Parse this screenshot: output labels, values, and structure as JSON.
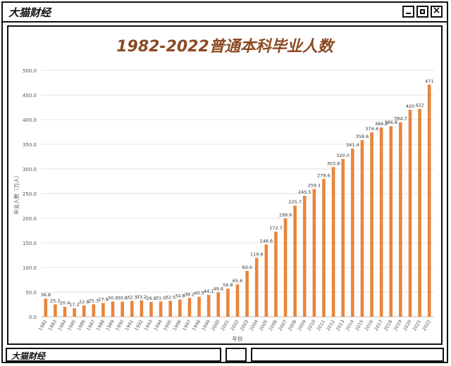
{
  "window": {
    "title": "大猫财经",
    "buttons": {
      "minimize_icon": "minimize-icon",
      "maximize_icon": "maximize-icon",
      "close_label": "×"
    }
  },
  "footer": {
    "label": "大猫财经"
  },
  "colors": {
    "bar": "#e8853d",
    "title": "#8a4a22",
    "axis_text": "#555555",
    "grid": "#e3e3e3"
  },
  "chart_data": {
    "type": "bar",
    "title": "1982-2022普通本科毕业人数",
    "xlabel": "年份",
    "ylabel": "毕业人数（万人）",
    "ylim": [
      0,
      500
    ],
    "yticks": [
      "0.0",
      "50.0",
      "100.0",
      "150.0",
      "200.0",
      "250.0",
      "300.0",
      "350.0",
      "400.0",
      "450.0",
      "500.0"
    ],
    "grid": true,
    "categories": [
      "1982",
      "1983",
      "1984",
      "1985",
      "1986",
      "1987",
      "1988",
      "1989",
      "1990",
      "1991",
      "1992",
      "1993",
      "1994",
      "1995",
      "1996",
      "1997",
      "1998",
      "1999",
      "2000",
      "2001",
      "2002",
      "2003",
      "2004",
      "2005",
      "2006",
      "2007",
      "2008",
      "2009",
      "2010",
      "2011",
      "2012",
      "2013",
      "2014",
      "2015",
      "2016",
      "2017",
      "2018",
      "2019",
      "2020",
      "2021",
      "2022"
    ],
    "values": [
      36.8,
      25.2,
      20.4,
      17.2,
      22.8,
      25.3,
      27.9,
      30.9,
      30.8,
      32.3,
      33.2,
      29.9,
      31.0,
      32.5,
      34.8,
      38.2,
      40.5,
      44.1,
      49.6,
      56.8,
      65.6,
      93.0,
      119.6,
      146.6,
      172.7,
      199.6,
      225.7,
      245.5,
      259.1,
      279.6,
      303.8,
      320.0,
      341.4,
      358.6,
      374.4,
      384.2,
      386.8,
      394.7,
      420,
      422,
      471
    ],
    "value_labels": [
      "36.8",
      "25.2",
      "20.4",
      "17.2",
      "22.8",
      "25.3",
      "27.9",
      "30.9",
      "30.8",
      "32.3",
      "33.2",
      "29.9",
      "31.0",
      "32.5",
      "34.8",
      "38.2",
      "40.5",
      "44.1",
      "49.6",
      "56.8",
      "65.6",
      "93.0",
      "119.6",
      "146.6",
      "172.7",
      "199.6",
      "225.7",
      "245.5",
      "259.1",
      "279.6",
      "303.8",
      "320.0",
      "341.4",
      "358.6",
      "374.4",
      "384.2",
      "386.8",
      "394.7",
      "420",
      "422",
      "471"
    ]
  }
}
